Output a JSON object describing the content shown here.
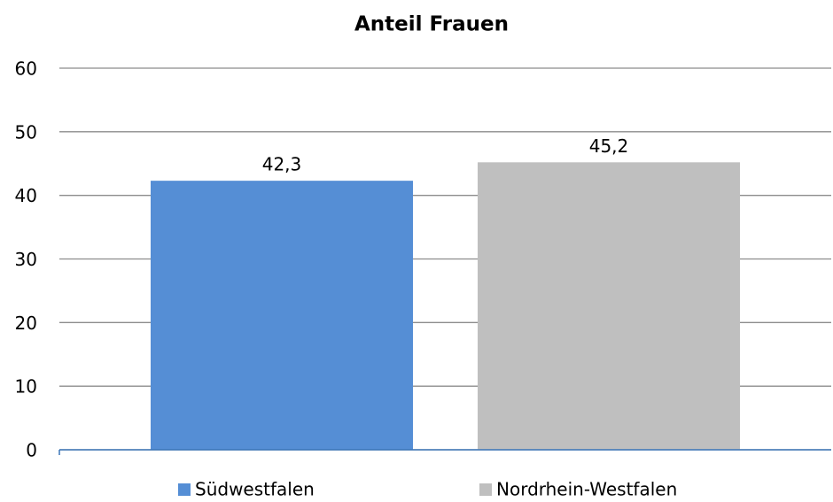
{
  "chart_data": {
    "type": "bar",
    "title": "Anteil Frauen",
    "categories": [
      null
    ],
    "series": [
      {
        "name": "Südwestfalen",
        "color": "#558ed5",
        "values": [
          42.3
        ],
        "value_labels": [
          "42,3"
        ]
      },
      {
        "name": "Nordrhein-Westfalen",
        "color": "#bfbfbf",
        "values": [
          45.2
        ],
        "value_labels": [
          "45,2"
        ]
      }
    ],
    "ylim": [
      0,
      60
    ],
    "yticks": [
      0,
      10,
      20,
      30,
      40,
      50,
      60
    ],
    "grid": true,
    "legend": "bottom"
  }
}
